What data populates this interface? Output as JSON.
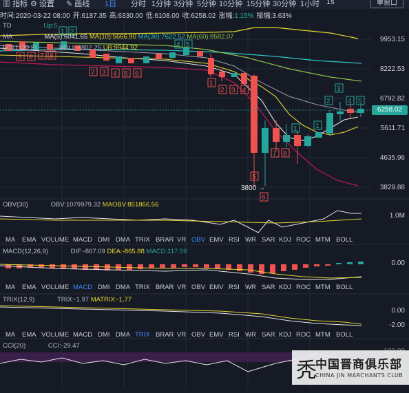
{
  "toolbar": {
    "items": [
      "指标",
      "设置",
      "画线",
      "1日",
      "分时",
      "1分钟",
      "3分钟",
      "5分钟",
      "10分钟",
      "15分钟",
      "30分钟",
      "1小时",
      "1s"
    ],
    "chart_type": "单窗口"
  },
  "info": {
    "time": "时间:2020-03-22 08:00",
    "open": "开:6187.35",
    "high": "高:6330.00",
    "low": "低:6108.00",
    "close": "收:6258.02",
    "change_label": "涨幅:",
    "change": "1.15%",
    "amp": "振幅:3.63%"
  },
  "td": {
    "label": "TD",
    "up": "Up:5"
  },
  "ma": {
    "label": "MA",
    "ma5": "MA(5):6041.65",
    "ma10": "MA(10):5666.90",
    "ma30": "MA(30):7622.52",
    "ma60": "MA(60):8582.07"
  },
  "boll": {
    "label": "BOLL(20,2)",
    "boll": "BOLL:6802.25",
    "ub": "UB:9944.92"
  },
  "price_axis": [
    "9953.15",
    "8222.53",
    "6792.82",
    "5611.71",
    "4635.96",
    "3829.88"
  ],
  "current_price": "6258.02",
  "low_marker": "3800",
  "obv": {
    "label": "OBV(30)",
    "obv": "OBV:1079979.32",
    "maobv": "MAOBV:851866.56",
    "axis": "1.0M"
  },
  "macd": {
    "label": "MACD(12,26,9)",
    "dif": "DIF:-807.09",
    "dea": "DEA:-865.88",
    "macd": "MACD:117.59",
    "axis": "0.00"
  },
  "trix": {
    "label": "TRIX(12,9)",
    "trix": "TRIX:-1.97",
    "matrix": "MATRIX:-1.77",
    "axis_top": "0.00",
    "axis_bottom": "-2.00"
  },
  "cci": {
    "label": "CCI(20)",
    "cci": "CCI:-29.47",
    "axis": "100.00"
  },
  "indicator_tabs": [
    "MA",
    "EMA",
    "VOLUME",
    "MACD",
    "DMI",
    "DMA",
    "TRIX",
    "BRAR",
    "VR",
    "OBV",
    "EMV",
    "RSI",
    "WR",
    "SAR",
    "KDJ",
    "ROC",
    "MTM",
    "BOLL"
  ],
  "tabs_active": {
    "row1": "OBV",
    "row2": "MACD",
    "row3": "TRIX"
  },
  "watermark": {
    "cn": "中国晋商俱乐部",
    "en": "CHINA JIN MARCHANTS CLUB"
  },
  "colors": {
    "up": "#26a69a",
    "down": "#ef5350",
    "ma5": "#e6e6e6",
    "ma10": "#e6d832",
    "ma30": "#2ec7c9",
    "ma60": "#8bc34a",
    "boll_lower": "#c2185b"
  }
}
